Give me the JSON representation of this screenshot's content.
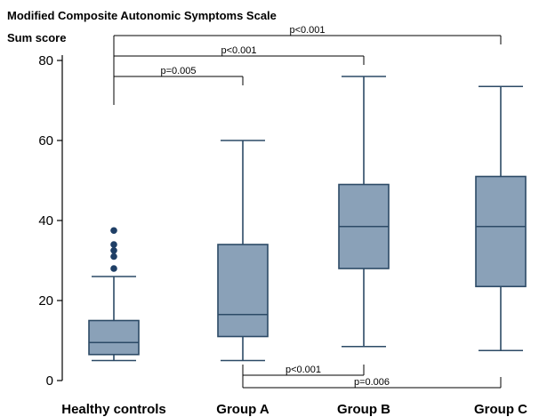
{
  "chart_data": {
    "type": "boxplot",
    "title": "Modified Composite Autonomic Symptoms Scale",
    "ylabel": "Sum score",
    "xlabel": "",
    "ylim": [
      0,
      80
    ],
    "yticks": [
      0,
      20,
      40,
      60,
      80
    ],
    "categories": [
      "Healthy controls",
      "Group A",
      "Group B",
      "Group C"
    ],
    "boxes": [
      {
        "category": "Healthy controls",
        "min": 5,
        "q1": 6.5,
        "median": 9.5,
        "q3": 15,
        "max": 26,
        "outliers": [
          28,
          31,
          32.5,
          34,
          37.5
        ]
      },
      {
        "category": "Group A",
        "min": 5,
        "q1": 11,
        "median": 16.5,
        "q3": 34,
        "max": 60,
        "outliers": []
      },
      {
        "category": "Group B",
        "min": 8.5,
        "q1": 28,
        "median": 38.5,
        "q3": 49,
        "max": 76,
        "outliers": []
      },
      {
        "category": "Group C",
        "min": 7.5,
        "q1": 23.5,
        "median": 38.5,
        "q3": 51,
        "max": 73.5,
        "outliers": []
      }
    ],
    "comparisons": [
      {
        "from": "Healthy controls",
        "to": "Group C",
        "label": "p<0.001",
        "position": "top"
      },
      {
        "from": "Healthy controls",
        "to": "Group B",
        "label": "p<0.001",
        "position": "top"
      },
      {
        "from": "Healthy controls",
        "to": "Group A",
        "label": "p=0.005",
        "position": "top"
      },
      {
        "from": "Group A",
        "to": "Group B",
        "label": "p<0.001",
        "position": "bottom"
      },
      {
        "from": "Group A",
        "to": "Group C",
        "label": "p=0.006",
        "position": "bottom"
      }
    ],
    "colors": {
      "box_fill": "#8aa1b8",
      "box_stroke": "#2c4a66",
      "outlier": "#1f3f66",
      "axis": "#000000"
    }
  }
}
